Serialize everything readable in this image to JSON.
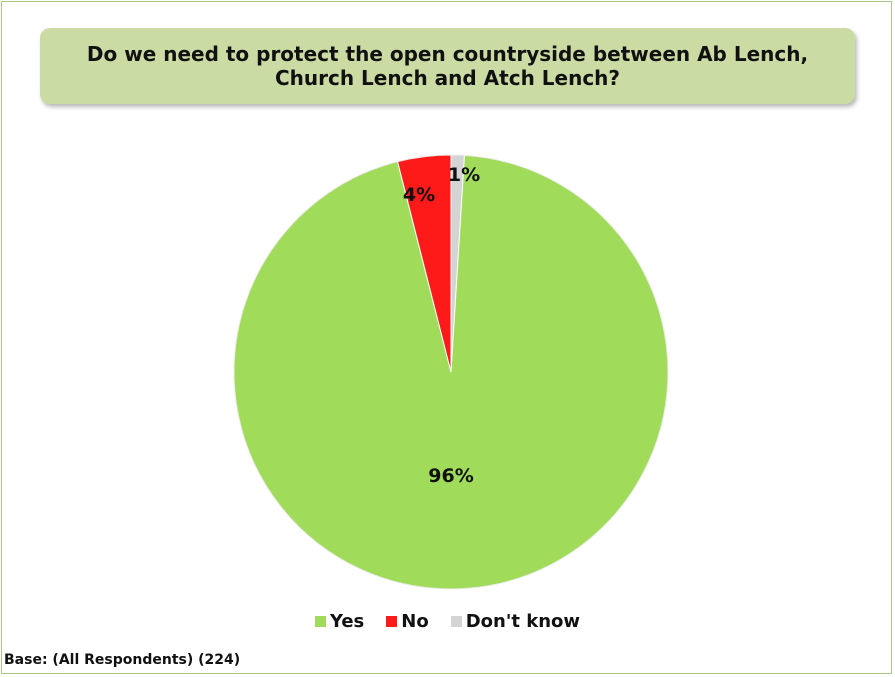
{
  "chart_data": {
    "type": "pie",
    "title": "Do we need to protect the open countryside between Ab Lench, Church Lench and Atch Lench?",
    "slices": [
      {
        "label": "Yes",
        "value": 96,
        "display": "96%",
        "color": "#a0dc5a"
      },
      {
        "label": "No",
        "value": 4,
        "display": "4%",
        "color": "#ff1a1a"
      },
      {
        "label": "Don't know",
        "value": 1,
        "display": "1%",
        "color": "#d4d4d4"
      }
    ],
    "legend_position": "bottom",
    "footnote": "Base: (All Respondents) (224)"
  }
}
